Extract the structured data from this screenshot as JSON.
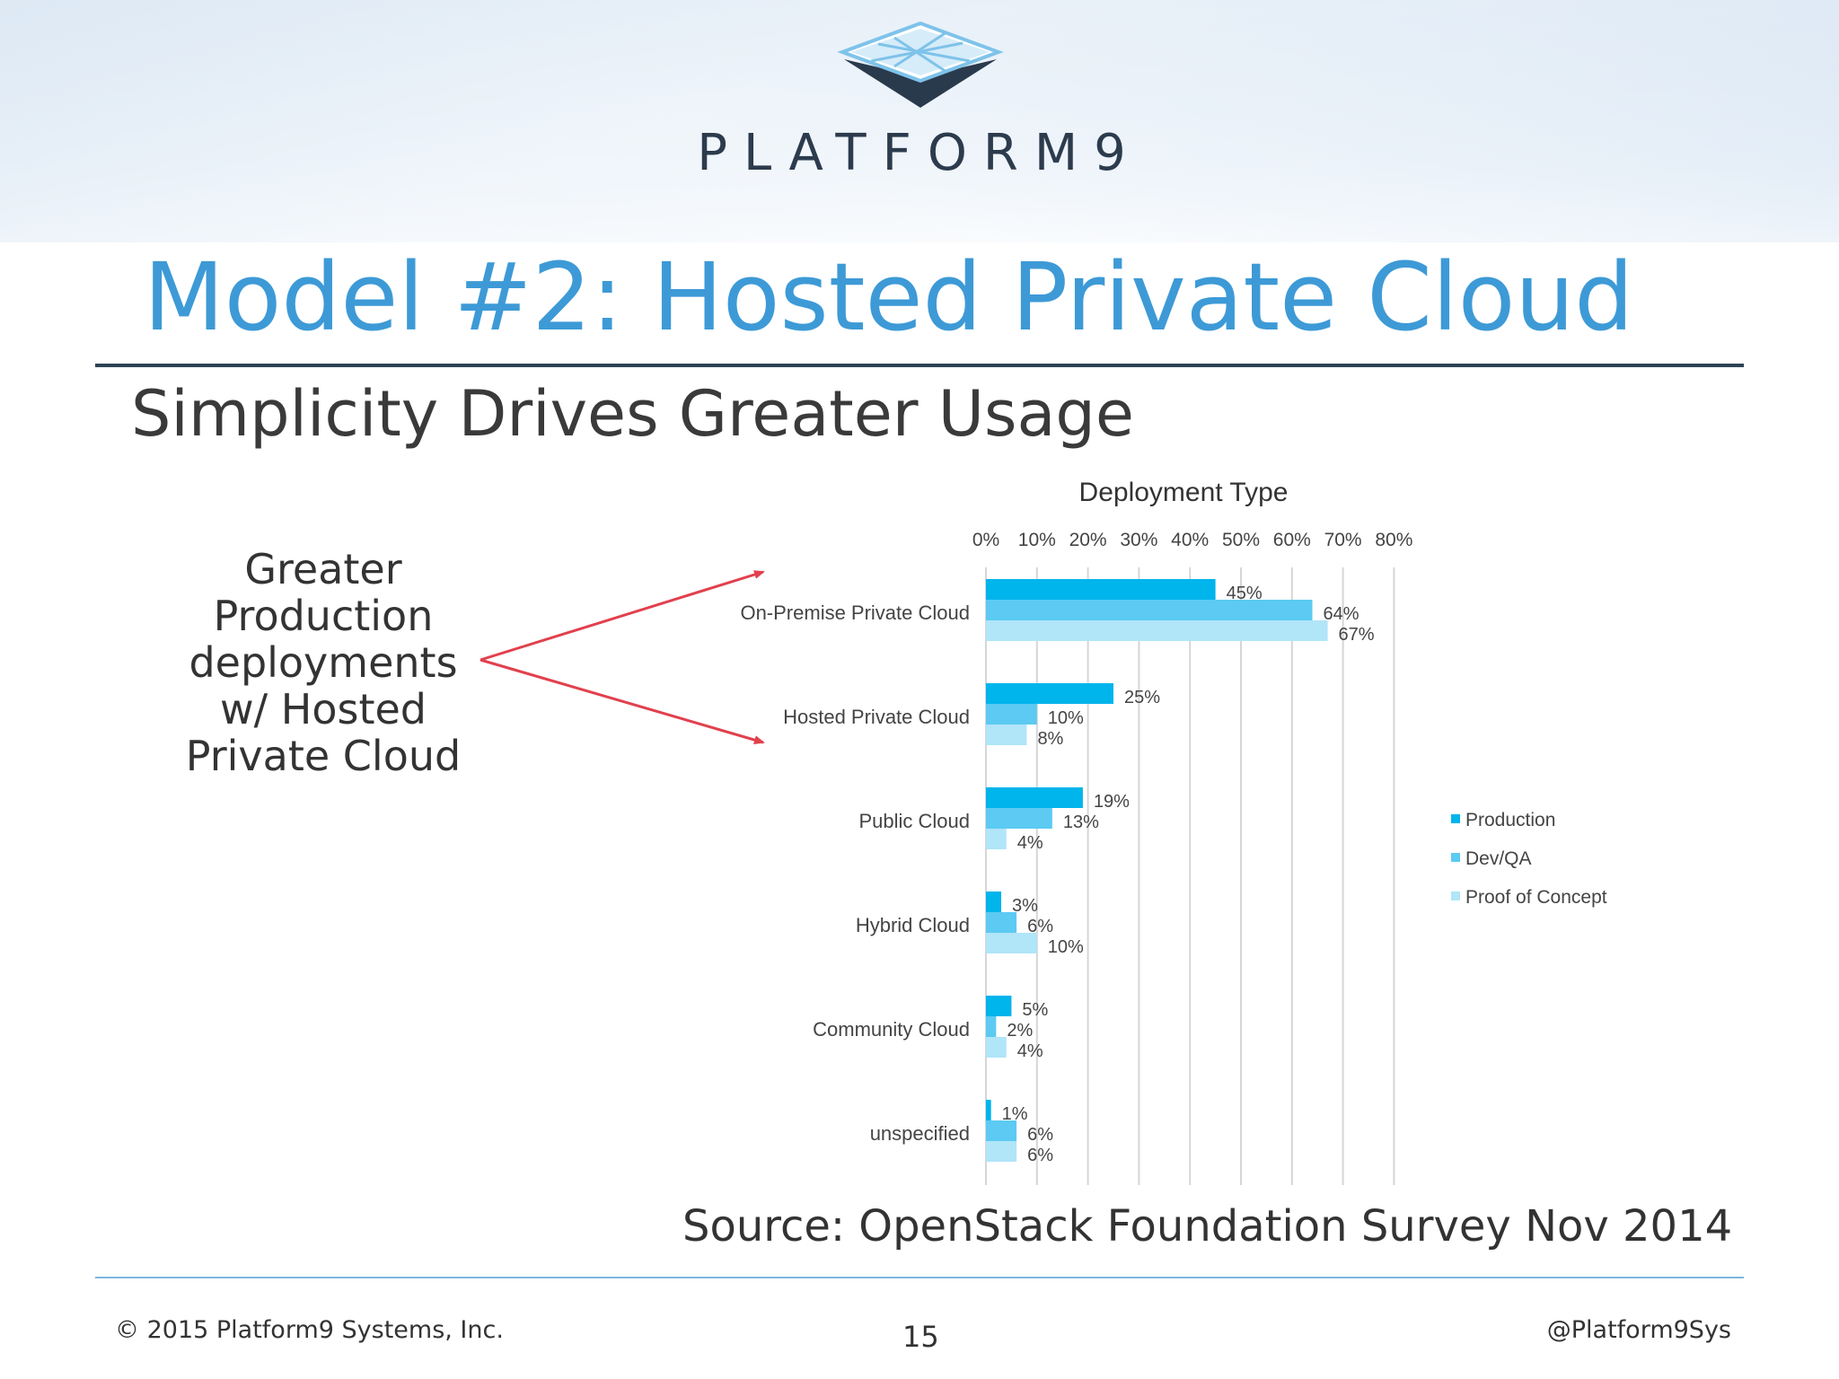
{
  "logo": {
    "text": "PLATFORM9",
    "icon": "platform-grid-logo-icon"
  },
  "title": "Model #2: Hosted Private Cloud",
  "subtitle": "Simplicity Drives Greater Usage",
  "callout": [
    "Greater",
    "Production",
    "deployments",
    "w/ Hosted",
    "Private Cloud"
  ],
  "source": "Source: OpenStack Foundation Survey Nov 2014",
  "footer": {
    "copyright": "© 2015 Platform9 Systems, Inc.",
    "page_number": "15",
    "handle": "@Platform9Sys"
  },
  "colors": {
    "title": "#3d9ad6",
    "production": "#00b4ec",
    "devqa": "#5ccaf2",
    "poc": "#b1e5f8",
    "arrow": "#e2404d"
  },
  "chart_data": {
    "type": "bar",
    "orientation": "horizontal",
    "title": "Deployment Type",
    "xlim": [
      0,
      80
    ],
    "xticks": [
      "0%",
      "10%",
      "20%",
      "30%",
      "40%",
      "50%",
      "60%",
      "70%",
      "80%"
    ],
    "grid": true,
    "legend_position": "right",
    "categories": [
      "On-Premise Private Cloud",
      "Hosted Private Cloud",
      "Public Cloud",
      "Hybrid Cloud",
      "Community Cloud",
      "unspecified"
    ],
    "series": [
      {
        "name": "Production",
        "values": [
          45,
          25,
          19,
          3,
          5,
          1
        ],
        "labels": [
          "45%",
          "25%",
          "19%",
          "3%",
          "5%",
          "1%"
        ]
      },
      {
        "name": "Dev/QA",
        "values": [
          64,
          10,
          13,
          6,
          2,
          6
        ],
        "labels": [
          "64%",
          "10%",
          "13%",
          "6%",
          "2%",
          "6%"
        ]
      },
      {
        "name": "Proof of Concept",
        "values": [
          67,
          8,
          4,
          10,
          4,
          6
        ],
        "labels": [
          "67%",
          "8%",
          "4%",
          "10%",
          "4%",
          "6%"
        ]
      }
    ]
  }
}
